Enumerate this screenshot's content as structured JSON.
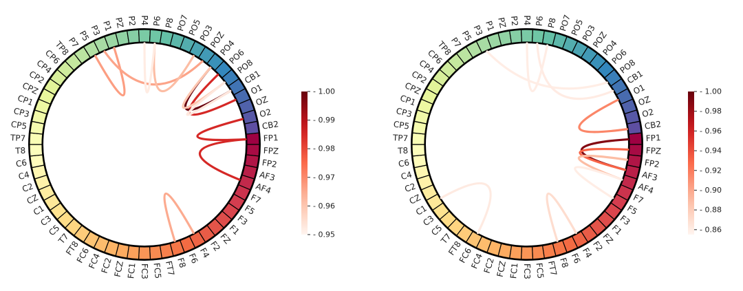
{
  "chart_data": [
    {
      "type": "chord",
      "title": "",
      "nodes": [
        "FP1",
        "FPZ",
        "FP2",
        "AF3",
        "AF4",
        "F7",
        "F5",
        "F3",
        "F1",
        "FZ",
        "F2",
        "F4",
        "F6",
        "F8",
        "FT7",
        "FC5",
        "FC3",
        "FC1",
        "FCZ",
        "FC2",
        "FC4",
        "FC6",
        "FT8",
        "T7",
        "C5",
        "C3",
        "C1",
        "CZ",
        "C2",
        "C4",
        "C6",
        "T8",
        "TP7",
        "CP5",
        "CP3",
        "CP1",
        "CPZ",
        "CP2",
        "CP4",
        "CP6",
        "TP8",
        "P7",
        "P5",
        "P3",
        "P1",
        "PZ",
        "P2",
        "P4",
        "P6",
        "P8",
        "PO7",
        "PO5",
        "PO3",
        "POZ",
        "PO4",
        "PO6",
        "PO8",
        "CB1",
        "O1",
        "OZ",
        "O2",
        "CB2"
      ],
      "connections": [
        {
          "source": "F4",
          "target": "F8",
          "value": 0.965
        },
        {
          "source": "FP1",
          "target": "AF4",
          "value": 0.985
        },
        {
          "source": "FP1",
          "target": "O2",
          "value": 0.985
        },
        {
          "source": "O1",
          "target": "PO6",
          "value": 0.985
        },
        {
          "source": "CB1",
          "target": "PO4",
          "value": 1.0
        },
        {
          "source": "PO4",
          "target": "PO8",
          "value": 0.96
        },
        {
          "source": "P5",
          "target": "P1",
          "value": 0.967
        },
        {
          "source": "P3",
          "target": "POZ",
          "value": 0.966
        },
        {
          "source": "P6",
          "target": "PO3",
          "value": 0.962
        },
        {
          "source": "P4",
          "target": "P6",
          "value": 0.952
        },
        {
          "source": "CB1",
          "target": "PO8",
          "value": 0.953
        }
      ],
      "colorbar": {
        "min": 0.95,
        "max": 1.0,
        "ticks": [
          "1.00",
          "0.99",
          "0.98",
          "0.97",
          "0.96",
          "0.95"
        ]
      }
    },
    {
      "type": "chord",
      "title": "",
      "nodes": [
        "FP1",
        "FPZ",
        "FP2",
        "AF3",
        "AF4",
        "F7",
        "F5",
        "F3",
        "F1",
        "FZ",
        "F2",
        "F4",
        "F6",
        "F8",
        "FT7",
        "FC5",
        "FC3",
        "FC1",
        "FCZ",
        "FC2",
        "FC4",
        "FC6",
        "FT8",
        "T7",
        "C5",
        "C3",
        "C1",
        "CZ",
        "C2",
        "C4",
        "C6",
        "T8",
        "TP7",
        "CP5",
        "CP3",
        "CP1",
        "CPZ",
        "CP2",
        "CP4",
        "CP6",
        "TP8",
        "P7",
        "P5",
        "P3",
        "P1",
        "PZ",
        "P2",
        "P4",
        "P6",
        "P8",
        "PO7",
        "PO5",
        "PO3",
        "POZ",
        "PO4",
        "PO6",
        "PO8",
        "CB1",
        "O1",
        "OZ",
        "O2",
        "CB2"
      ],
      "connections": [
        {
          "source": "FP1",
          "target": "AF3",
          "value": 0.99
        },
        {
          "source": "FPZ",
          "target": "AF3",
          "value": 0.93
        },
        {
          "source": "FP2",
          "target": "AF4",
          "value": 0.89
        },
        {
          "source": "F4",
          "target": "F8",
          "value": 0.87
        },
        {
          "source": "AF4",
          "target": "F5",
          "value": 0.86
        },
        {
          "source": "CB2",
          "target": "O1",
          "value": 0.915
        },
        {
          "source": "FC6",
          "target": "C1",
          "value": 0.862
        },
        {
          "source": "PO8",
          "target": "P3",
          "value": 0.86
        },
        {
          "source": "CB1",
          "target": "P6",
          "value": 0.861
        },
        {
          "source": "P4",
          "target": "P8",
          "value": 0.86
        }
      ],
      "colorbar": {
        "min": 0.855,
        "max": 1.0,
        "ticks": [
          "1.00",
          "0.98",
          "0.96",
          "0.94",
          "0.92",
          "0.90",
          "0.88",
          "0.86"
        ]
      }
    }
  ]
}
